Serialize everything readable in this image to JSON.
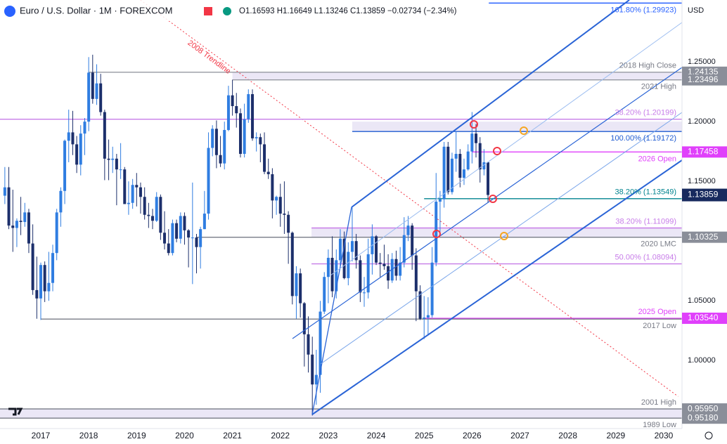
{
  "chart_data": {
    "type": "candlestick",
    "title": "Euro / U.S. Dollar · 1M · FOREXCOM",
    "ohlc_legend": "O1.16593 H1.16649 L1.13246 C1.13859 −0.02734 (−2.34%)",
    "currency": "USD",
    "up_color": "#2f7de1",
    "down_color": "#1c2f6b",
    "ylim": [
      0.9431,
      1.3018
    ],
    "xlim": [
      2016.149,
      2030.382
    ],
    "yticks": [
      {
        "value": 1.25,
        "label": "1.25000"
      },
      {
        "value": 1.2,
        "label": "1.20000"
      },
      {
        "value": 1.15,
        "label": "1.15000"
      },
      {
        "value": 1.05,
        "label": "1.05000"
      },
      {
        "value": 1.0,
        "label": "1.00000"
      }
    ],
    "xticks": [
      2017,
      2018,
      2019,
      2020,
      2021,
      2022,
      2023,
      2024,
      2025,
      2026,
      2027,
      2028,
      2029,
      2030
    ],
    "x": [
      2016.25,
      2016.333,
      2016.417,
      2016.5,
      2016.583,
      2016.667,
      2016.75,
      2016.833,
      2016.917,
      2017.0,
      2017.083,
      2017.167,
      2017.25,
      2017.333,
      2017.417,
      2017.5,
      2017.583,
      2017.667,
      2017.75,
      2017.833,
      2017.917,
      2018.0,
      2018.083,
      2018.167,
      2018.25,
      2018.333,
      2018.417,
      2018.5,
      2018.583,
      2018.667,
      2018.75,
      2018.833,
      2018.917,
      2019.0,
      2019.083,
      2019.167,
      2019.25,
      2019.333,
      2019.417,
      2019.5,
      2019.583,
      2019.667,
      2019.75,
      2019.833,
      2019.917,
      2020.0,
      2020.083,
      2020.167,
      2020.25,
      2020.333,
      2020.417,
      2020.5,
      2020.583,
      2020.667,
      2020.75,
      2020.833,
      2020.917,
      2021.0,
      2021.083,
      2021.167,
      2021.25,
      2021.333,
      2021.417,
      2021.5,
      2021.583,
      2021.667,
      2021.75,
      2021.833,
      2021.917,
      2022.0,
      2022.083,
      2022.167,
      2022.25,
      2022.333,
      2022.417,
      2022.5,
      2022.583,
      2022.667,
      2022.75,
      2022.833,
      2022.917,
      2023.0,
      2023.083,
      2023.167,
      2023.25,
      2023.333,
      2023.417,
      2023.5,
      2023.583,
      2023.667,
      2023.75,
      2023.833,
      2023.917,
      2024.0,
      2024.083,
      2024.167,
      2024.25,
      2024.333,
      2024.417,
      2024.5,
      2024.583,
      2024.667,
      2024.75,
      2024.833,
      2024.917,
      2025.0,
      2025.083,
      2025.167,
      2025.25,
      2025.333,
      2025.417,
      2025.5,
      2025.583,
      2025.667,
      2025.75,
      2025.833,
      2025.917,
      2026.0,
      2026.083,
      2026.167,
      2026.25,
      2026.333
    ],
    "candles": [
      [
        1.138,
        1.162,
        1.131,
        1.145
      ],
      [
        1.145,
        1.162,
        1.11,
        1.113
      ],
      [
        1.113,
        1.143,
        1.091,
        1.111
      ],
      [
        1.111,
        1.119,
        1.095,
        1.117
      ],
      [
        1.117,
        1.137,
        1.105,
        1.116
      ],
      [
        1.116,
        1.132,
        1.112,
        1.124
      ],
      [
        1.124,
        1.127,
        1.09,
        1.098
      ],
      [
        1.098,
        1.114,
        1.055,
        1.059
      ],
      [
        1.059,
        1.087,
        1.035,
        1.052
      ],
      [
        1.052,
        1.082,
        1.034,
        1.08
      ],
      [
        1.08,
        1.083,
        1.049,
        1.058
      ],
      [
        1.058,
        1.091,
        1.05,
        1.065
      ],
      [
        1.065,
        1.097,
        1.058,
        1.09
      ],
      [
        1.09,
        1.127,
        1.084,
        1.124
      ],
      [
        1.124,
        1.145,
        1.112,
        1.142
      ],
      [
        1.142,
        1.185,
        1.131,
        1.184
      ],
      [
        1.184,
        1.21,
        1.166,
        1.191
      ],
      [
        1.191,
        1.209,
        1.172,
        1.181
      ],
      [
        1.181,
        1.188,
        1.157,
        1.164
      ],
      [
        1.164,
        1.197,
        1.155,
        1.19
      ],
      [
        1.19,
        1.203,
        1.172,
        1.2
      ],
      [
        1.2,
        1.254,
        1.192,
        1.241
      ],
      [
        1.241,
        1.256,
        1.215,
        1.219
      ],
      [
        1.219,
        1.248,
        1.214,
        1.232
      ],
      [
        1.232,
        1.24,
        1.205,
        1.208
      ],
      [
        1.208,
        1.21,
        1.151,
        1.169
      ],
      [
        1.169,
        1.185,
        1.151,
        1.168
      ],
      [
        1.168,
        1.179,
        1.157,
        1.169
      ],
      [
        1.169,
        1.173,
        1.13,
        1.16
      ],
      [
        1.16,
        1.182,
        1.152,
        1.16
      ],
      [
        1.16,
        1.162,
        1.132,
        1.131
      ],
      [
        1.131,
        1.15,
        1.122,
        1.132
      ],
      [
        1.132,
        1.152,
        1.127,
        1.147
      ],
      [
        1.147,
        1.157,
        1.129,
        1.145
      ],
      [
        1.145,
        1.149,
        1.123,
        1.137
      ],
      [
        1.137,
        1.145,
        1.118,
        1.122
      ],
      [
        1.122,
        1.132,
        1.111,
        1.121
      ],
      [
        1.121,
        1.127,
        1.11,
        1.117
      ],
      [
        1.117,
        1.141,
        1.116,
        1.137
      ],
      [
        1.137,
        1.139,
        1.101,
        1.107
      ],
      [
        1.107,
        1.125,
        1.093,
        1.098
      ],
      [
        1.098,
        1.11,
        1.088,
        1.09
      ],
      [
        1.09,
        1.118,
        1.088,
        1.115
      ],
      [
        1.115,
        1.118,
        1.099,
        1.102
      ],
      [
        1.102,
        1.124,
        1.098,
        1.121
      ],
      [
        1.121,
        1.124,
        1.097,
        1.109
      ],
      [
        1.109,
        1.11,
        1.078,
        1.103
      ],
      [
        1.103,
        1.149,
        1.064,
        1.103
      ],
      [
        1.103,
        1.106,
        1.073,
        1.095
      ],
      [
        1.095,
        1.112,
        1.077,
        1.11
      ],
      [
        1.11,
        1.142,
        1.11,
        1.123
      ],
      [
        1.123,
        1.191,
        1.118,
        1.178
      ],
      [
        1.178,
        1.197,
        1.171,
        1.194
      ],
      [
        1.194,
        1.201,
        1.161,
        1.172
      ],
      [
        1.172,
        1.188,
        1.162,
        1.165
      ],
      [
        1.165,
        1.2,
        1.16,
        1.193
      ],
      [
        1.193,
        1.23,
        1.192,
        1.222
      ],
      [
        1.222,
        1.235,
        1.205,
        1.213
      ],
      [
        1.213,
        1.224,
        1.195,
        1.207
      ],
      [
        1.207,
        1.211,
        1.17,
        1.173
      ],
      [
        1.173,
        1.215,
        1.17,
        1.202
      ],
      [
        1.202,
        1.227,
        1.199,
        1.223
      ],
      [
        1.223,
        1.227,
        1.184,
        1.186
      ],
      [
        1.186,
        1.191,
        1.175,
        1.187
      ],
      [
        1.187,
        1.19,
        1.166,
        1.181
      ],
      [
        1.181,
        1.191,
        1.156,
        1.158
      ],
      [
        1.158,
        1.169,
        1.152,
        1.156
      ],
      [
        1.156,
        1.161,
        1.119,
        1.134
      ],
      [
        1.134,
        1.138,
        1.122,
        1.137
      ],
      [
        1.137,
        1.148,
        1.112,
        1.123
      ],
      [
        1.123,
        1.15,
        1.106,
        1.122
      ],
      [
        1.122,
        1.125,
        1.081,
        1.107
      ],
      [
        1.107,
        1.108,
        1.047,
        1.054
      ],
      [
        1.054,
        1.079,
        1.035,
        1.073
      ],
      [
        1.073,
        1.077,
        1.036,
        1.048
      ],
      [
        1.048,
        1.049,
        0.995,
        1.022
      ],
      [
        1.022,
        1.037,
        0.99,
        1.005
      ],
      [
        1.005,
        1.02,
        0.954,
        0.98
      ],
      [
        0.98,
        1.009,
        0.963,
        0.988
      ],
      [
        0.988,
        1.05,
        0.973,
        1.041
      ],
      [
        1.041,
        1.074,
        1.039,
        1.07
      ],
      [
        1.07,
        1.093,
        1.048,
        1.086
      ],
      [
        1.086,
        1.104,
        1.053,
        1.058
      ],
      [
        1.058,
        1.093,
        1.052,
        1.084
      ],
      [
        1.084,
        1.11,
        1.079,
        1.102
      ],
      [
        1.102,
        1.108,
        1.068,
        1.069
      ],
      [
        1.069,
        1.099,
        1.063,
        1.091
      ],
      [
        1.091,
        1.128,
        1.083,
        1.1
      ],
      [
        1.1,
        1.106,
        1.077,
        1.084
      ],
      [
        1.084,
        1.088,
        1.049,
        1.057
      ],
      [
        1.057,
        1.07,
        1.045,
        1.057
      ],
      [
        1.057,
        1.102,
        1.052,
        1.089
      ],
      [
        1.089,
        1.114,
        1.072,
        1.104
      ],
      [
        1.104,
        1.105,
        1.08,
        1.082
      ],
      [
        1.082,
        1.09,
        1.07,
        1.081
      ],
      [
        1.081,
        1.097,
        1.076,
        1.079
      ],
      [
        1.079,
        1.089,
        1.06,
        1.067
      ],
      [
        1.067,
        1.09,
        1.065,
        1.085
      ],
      [
        1.085,
        1.092,
        1.067,
        1.071
      ],
      [
        1.071,
        1.095,
        1.067,
        1.082
      ],
      [
        1.082,
        1.12,
        1.078,
        1.105
      ],
      [
        1.105,
        1.121,
        1.1,
        1.113
      ],
      [
        1.113,
        1.115,
        1.076,
        1.088
      ],
      [
        1.088,
        1.094,
        1.033,
        1.058
      ],
      [
        1.058,
        1.063,
        1.034,
        1.035
      ],
      [
        1.035,
        1.054,
        1.018,
        1.036
      ],
      [
        1.036,
        1.053,
        1.021,
        1.038
      ],
      [
        1.038,
        1.095,
        1.036,
        1.082
      ],
      [
        1.082,
        1.157,
        1.079,
        1.133
      ],
      [
        1.133,
        1.142,
        1.107,
        1.135
      ],
      [
        1.135,
        1.183,
        1.128,
        1.179
      ],
      [
        1.179,
        1.183,
        1.139,
        1.141
      ],
      [
        1.141,
        1.174,
        1.139,
        1.169
      ],
      [
        1.169,
        1.192,
        1.158,
        1.173
      ],
      [
        1.173,
        1.177,
        1.145,
        1.153
      ],
      [
        1.153,
        1.169,
        1.147,
        1.16
      ],
      [
        1.16,
        1.181,
        1.159,
        1.175
      ],
      [
        1.175,
        1.208,
        1.165,
        1.19
      ],
      [
        1.19,
        1.198,
        1.17,
        1.182
      ],
      [
        1.182,
        1.187,
        1.149,
        1.16
      ],
      [
        1.16,
        1.177,
        1.155,
        1.166
      ],
      [
        1.16593,
        1.16649,
        1.13246,
        1.13859
      ]
    ],
    "zones": [
      {
        "top": 1.24135,
        "bottom": 1.23496,
        "from": 2021.0
      },
      {
        "top": 1.2,
        "bottom": 1.19172,
        "from": 2023.5
      },
      {
        "top": 1.11099,
        "bottom": 1.10325,
        "from": 2022.65
      },
      {
        "top": 0.9595,
        "bottom": 0.9518,
        "from": 2016.149
      }
    ],
    "levels": [
      {
        "label": "161.80% (1.29923)",
        "value": 1.29923,
        "color": "#2962ff",
        "from": 2026.35,
        "side": "below"
      },
      {
        "label": "2018 High Close",
        "value": 1.24135,
        "color": "#9598a1",
        "from": 2018.0,
        "side": "above",
        "tag": "1.24135"
      },
      {
        "label": "2021 High",
        "value": 1.23496,
        "color": "#9598a1",
        "from": 2021.0,
        "side": "below",
        "tag": "1.23496"
      },
      {
        "label": "38.20% (1.20199)",
        "value": 1.20199,
        "color": "#c77ce8",
        "from": 2016.149,
        "side": "above"
      },
      {
        "label": "100.00% (1.19172)",
        "value": 1.19172,
        "color": "#1f5bd1",
        "from": 2023.5,
        "side": "below"
      },
      {
        "label": "2026 Open",
        "value": 1.17458,
        "color": "#e040fb",
        "from": 2026.0,
        "side": "below",
        "tag": "1.17458"
      },
      {
        "label": "38.20% (1.13549)",
        "value": 1.13549,
        "color": "#00838f",
        "from": 2025.0,
        "side": "above"
      },
      {
        "label": "38.20% (1.11099)",
        "value": 1.11099,
        "color": "#c77ce8",
        "from": 2022.65,
        "side": "above"
      },
      {
        "label": "2020 LMC",
        "value": 1.10325,
        "color": "#787b86",
        "from": 2020.25,
        "side": "below",
        "tag": "1.10325"
      },
      {
        "label": "50.00% (1.08094)",
        "value": 1.08094,
        "color": "#c77ce8",
        "from": 2022.65,
        "side": "above"
      },
      {
        "label": "2025 Open",
        "value": 1.0354,
        "color": "#e040fb",
        "from": 2025.0,
        "side": "above",
        "tag": "1.03540"
      },
      {
        "label": "2017 Low",
        "value": 1.0347,
        "color": "#787b86",
        "from": 2017.0,
        "side": "below"
      },
      {
        "label": "2001 High",
        "value": 0.9595,
        "color": "#787b86",
        "from": 2016.149,
        "side": "above",
        "tag": "0.95950"
      },
      {
        "label": "1989 Low",
        "value": 0.9518,
        "color": "#787b86",
        "from": 2016.149,
        "side": "below",
        "tag": "0.95180"
      }
    ],
    "last_price": {
      "value": 1.13859,
      "color": "#172a5e"
    },
    "trendline": {
      "label": "2008 Trendline",
      "color": "#f23645",
      "points": [
        [
          2019.08,
          1.3018
        ],
        [
          2030.3,
          0.97
        ]
      ]
    }
  }
}
